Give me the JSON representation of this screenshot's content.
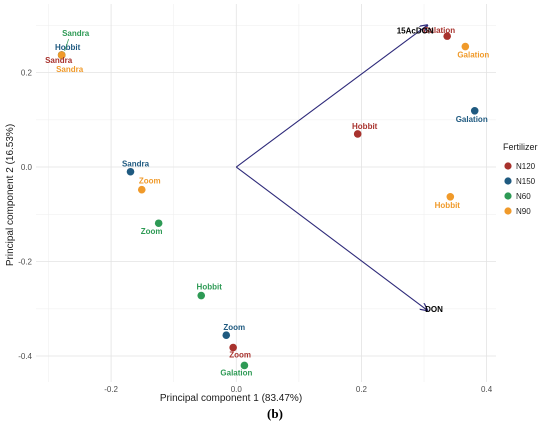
{
  "caption": "(b)",
  "chart_data": {
    "type": "scatter",
    "xlabel": "Principal component 1 (83.47%)",
    "ylabel": "Principal component 2 (16.53%)",
    "xlim": [
      -0.32,
      0.415
    ],
    "ylim": [
      -0.455,
      0.345
    ],
    "x_ticks": [
      -0.2,
      0.0,
      0.2,
      0.4
    ],
    "x_tick_labels": [
      "-0.2",
      "0.0",
      "0.2",
      "0.4"
    ],
    "y_ticks": [
      -0.4,
      -0.2,
      0.0,
      0.2
    ],
    "y_tick_labels": [
      "-0.4",
      "-0.2",
      "0.0",
      "0.2"
    ],
    "grid": true,
    "legend": {
      "title": "Fertilizer",
      "placement": "right",
      "entries": [
        {
          "name": "N120",
          "color": "#a8322d"
        },
        {
          "name": "N150",
          "color": "#1f5a80"
        },
        {
          "name": "N60",
          "color": "#2e9a55"
        },
        {
          "name": "N90",
          "color": "#f09a2a"
        }
      ]
    },
    "series": [
      {
        "name": "N120",
        "color": "#a8322d",
        "points": [
          {
            "label": "Sandra",
            "x": -0.279,
            "y": 0.237
          },
          {
            "label": "Galation",
            "x": 0.337,
            "y": 0.277
          },
          {
            "label": "Hobbit",
            "x": 0.194,
            "y": 0.07
          },
          {
            "label": "Zoom",
            "x": -0.005,
            "y": -0.382
          }
        ]
      },
      {
        "name": "N150",
        "color": "#1f5a80",
        "points": [
          {
            "label": "Hobbit",
            "x": -0.279,
            "y": 0.237
          },
          {
            "label": "Galation",
            "x": 0.381,
            "y": 0.119
          },
          {
            "label": "Sandra",
            "x": -0.169,
            "y": -0.01
          },
          {
            "label": "Zoom",
            "x": -0.016,
            "y": -0.356
          }
        ]
      },
      {
        "name": "N60",
        "color": "#2e9a55",
        "points": [
          {
            "label": "Sandra",
            "x": -0.279,
            "y": 0.237
          },
          {
            "label": "Zoom",
            "x": -0.124,
            "y": -0.119
          },
          {
            "label": "Hobbit",
            "x": -0.056,
            "y": -0.272
          },
          {
            "label": "Galation",
            "x": 0.013,
            "y": -0.42
          }
        ]
      },
      {
        "name": "N90",
        "color": "#f09a2a",
        "points": [
          {
            "label": "Sandra",
            "x": -0.279,
            "y": 0.237
          },
          {
            "label": "Galation",
            "x": 0.366,
            "y": 0.255
          },
          {
            "label": "Zoom",
            "x": -0.151,
            "y": -0.048
          },
          {
            "label": "Hobbit",
            "x": 0.342,
            "y": -0.063
          }
        ]
      }
    ],
    "vectors": [
      {
        "label": "15AcDON",
        "x": 0.305,
        "y": 0.3
      },
      {
        "label": "DON",
        "x": 0.305,
        "y": -0.303
      }
    ]
  }
}
